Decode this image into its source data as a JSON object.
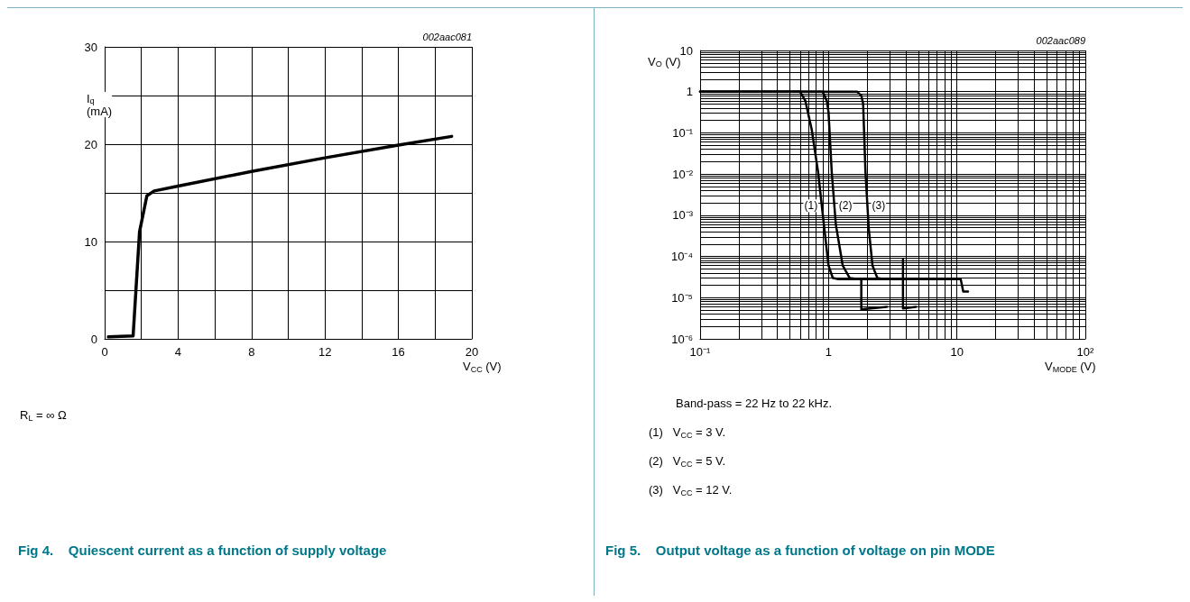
{
  "chart_data": [
    {
      "type": "line",
      "title": "Fig 4.    Quiescent current as a function of supply voltage",
      "xlabel": "V$_{CC}$ (V)",
      "ylabel": "I$_{q}$\n(mA)",
      "annotations": [
        "002aac081",
        "R$_{L}$ = ∞ Ω"
      ],
      "x": [
        0.2,
        1.55,
        1.9,
        2.3,
        2.7,
        4,
        8,
        12,
        16,
        18.9
      ],
      "values": [
        0.2,
        0.3,
        11,
        14.7,
        15.2,
        15.7,
        17.2,
        18.6,
        19.9,
        20.8
      ],
      "color": "#000000",
      "marker": "none",
      "line_style": "solid",
      "grid": true,
      "xlim": [
        0,
        20
      ],
      "xticks": [
        0,
        {
          "value": 2,
          "label": null
        },
        4,
        {
          "value": 6,
          "label": null
        },
        8,
        {
          "value": 10,
          "label": null
        },
        12,
        {
          "value": 14,
          "label": null
        },
        16,
        {
          "value": 18,
          "label": null
        },
        20
      ],
      "ylim": [
        0,
        30
      ],
      "yticks": [
        0,
        {
          "value": 5,
          "label": null
        },
        10,
        {
          "value": 15,
          "label": null
        },
        20,
        {
          "value": 25,
          "label": null
        },
        30
      ]
    },
    {
      "type": "line",
      "title": "Fig 5.    Output voltage as a function of voltage on pin MODE",
      "xlabel": "V$_{MODE}$ (V)",
      "ylabel": "V$_{O}$ (V)",
      "annotations": [
        "002aac089",
        "Band-pass = 22 Hz to 22 kHz.",
        "(1)   V$_{CC}$ = 3 V.",
        "(2)   V$_{CC}$ = 5 V.",
        "(3)   V$_{CC}$ = 12 V.",
        {
          "text": "(1)",
          "x": 0.89,
          "y": 0.0017
        },
        {
          "text": "(2)",
          "x": 1.11,
          "y": 0.0017
        },
        {
          "text": "(3)",
          "x": 2.01,
          "y": 0.0017
        }
      ],
      "log": "xy",
      "marker": "none",
      "line_style": "solid",
      "grid": true,
      "series": [
        {
          "color": "#000000",
          "x": [
            0.1,
            0.6,
            0.66,
            0.74,
            0.83,
            0.92,
            1.0,
            1.08,
            1.2,
            1.8,
            1.8,
            2.85
          ],
          "values": [
            1,
            1,
            0.6,
            0.12,
            0.011,
            0.0006,
            6e-05,
            3e-05,
            2.8e-05,
            2.8e-05,
            5.2e-06,
            6e-06
          ]
        },
        {
          "color": "#000000",
          "x": [
            0.1,
            0.9,
            0.97,
            1.0,
            1.06,
            1.14,
            1.29,
            1.46,
            1.7,
            3.8,
            3.8,
            3.8,
            4.8
          ],
          "values": [
            1,
            1,
            0.6,
            0.32,
            0.011,
            0.0006,
            6e-05,
            3e-05,
            2.8e-05,
            2.8e-05,
            8.5e-05,
            5.5e-06,
            6e-06
          ]
        },
        {
          "color": "#000000",
          "x": [
            0.1,
            1.67,
            1.8,
            1.86,
            1.94,
            2.06,
            2.2,
            2.4,
            2.7,
            10.7,
            11.2,
            12.2
          ],
          "values": [
            1,
            1,
            0.8,
            0.52,
            0.011,
            0.00045,
            6e-05,
            3e-05,
            2.8e-05,
            2.8e-05,
            1.4e-05,
            1.4e-05
          ]
        }
      ],
      "xlim": [
        0.1,
        100
      ],
      "xticks": [
        {
          "value": 0.1,
          "label": "10⁻¹"
        },
        {
          "value": 0.2,
          "label": null
        },
        {
          "value": 0.3,
          "label": null
        },
        {
          "value": 0.4,
          "label": null
        },
        {
          "value": 0.5,
          "label": null
        },
        {
          "value": 0.6,
          "label": null
        },
        {
          "value": 0.7,
          "label": null
        },
        {
          "value": 0.8,
          "label": null
        },
        {
          "value": 0.9,
          "label": null
        },
        1,
        {
          "value": 2,
          "label": null
        },
        {
          "value": 3,
          "label": null
        },
        {
          "value": 4,
          "label": null
        },
        {
          "value": 5,
          "label": null
        },
        {
          "value": 6,
          "label": null
        },
        {
          "value": 7,
          "label": null
        },
        {
          "value": 8,
          "label": null
        },
        {
          "value": 9,
          "label": null
        },
        10,
        {
          "value": 20,
          "label": null
        },
        {
          "value": 30,
          "label": null
        },
        {
          "value": 40,
          "label": null
        },
        {
          "value": 50,
          "label": null
        },
        {
          "value": 60,
          "label": null
        },
        {
          "value": 70,
          "label": null
        },
        {
          "value": 80,
          "label": null
        },
        {
          "value": 90,
          "label": null
        },
        {
          "value": 100,
          "label": "10²"
        }
      ],
      "ylim": [
        1e-06,
        10
      ],
      "yticks": [
        {
          "value": 1e-06,
          "label": "10⁻⁶"
        },
        {
          "value": 2e-06,
          "label": null
        },
        {
          "value": 3e-06,
          "label": null
        },
        {
          "value": 4e-06,
          "label": null
        },
        {
          "value": 5e-06,
          "label": null
        },
        {
          "value": 6e-06,
          "label": null
        },
        {
          "value": 7e-06,
          "label": null
        },
        {
          "value": 8e-06,
          "label": null
        },
        {
          "value": 9e-06,
          "label": null
        },
        {
          "value": 1e-05,
          "label": "10⁻⁵"
        },
        {
          "value": 2e-05,
          "label": null
        },
        {
          "value": 3e-05,
          "label": null
        },
        {
          "value": 4e-05,
          "label": null
        },
        {
          "value": 5e-05,
          "label": null
        },
        {
          "value": 6e-05,
          "label": null
        },
        {
          "value": 7e-05,
          "label": null
        },
        {
          "value": 8e-05,
          "label": null
        },
        {
          "value": 9e-05,
          "label": null
        },
        {
          "value": 0.0001,
          "label": "10⁻⁴"
        },
        {
          "value": 0.0002,
          "label": null
        },
        {
          "value": 0.0003,
          "label": null
        },
        {
          "value": 0.0004,
          "label": null
        },
        {
          "value": 0.0005,
          "label": null
        },
        {
          "value": 0.0006,
          "label": null
        },
        {
          "value": 0.0007,
          "label": null
        },
        {
          "value": 0.0008,
          "label": null
        },
        {
          "value": 0.0009,
          "label": null
        },
        {
          "value": 0.001,
          "label": "10⁻³"
        },
        {
          "value": 0.002,
          "label": null
        },
        {
          "value": 0.003,
          "label": null
        },
        {
          "value": 0.004,
          "label": null
        },
        {
          "value": 0.005,
          "label": null
        },
        {
          "value": 0.006,
          "label": null
        },
        {
          "value": 0.007,
          "label": null
        },
        {
          "value": 0.008,
          "label": null
        },
        {
          "value": 0.009,
          "label": null
        },
        {
          "value": 0.01,
          "label": "10⁻²"
        },
        {
          "value": 0.02,
          "label": null
        },
        {
          "value": 0.03,
          "label": null
        },
        {
          "value": 0.04,
          "label": null
        },
        {
          "value": 0.05,
          "label": null
        },
        {
          "value": 0.06,
          "label": null
        },
        {
          "value": 0.07,
          "label": null
        },
        {
          "value": 0.08,
          "label": null
        },
        {
          "value": 0.09,
          "label": null
        },
        {
          "value": 0.1,
          "label": "10⁻¹"
        },
        {
          "value": 0.2,
          "label": null
        },
        {
          "value": 0.3,
          "label": null
        },
        {
          "value": 0.4,
          "label": null
        },
        {
          "value": 0.5,
          "label": null
        },
        {
          "value": 0.6,
          "label": null
        },
        {
          "value": 0.7,
          "label": null
        },
        {
          "value": 0.8,
          "label": null
        },
        {
          "value": 0.9,
          "label": null
        },
        1,
        {
          "value": 2,
          "label": null
        },
        {
          "value": 3,
          "label": null
        },
        {
          "value": 4,
          "label": null
        },
        {
          "value": 5,
          "label": null
        },
        {
          "value": 6,
          "label": null
        },
        {
          "value": 7,
          "label": null
        },
        {
          "value": 8,
          "label": null
        },
        {
          "value": 9,
          "label": null
        },
        10
      ]
    }
  ]
}
